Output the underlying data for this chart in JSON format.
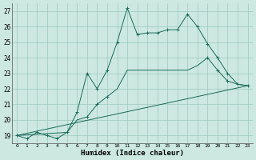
{
  "xlabel": "Humidex (Indice chaleur)",
  "background_color": "#cce8e0",
  "grid_color": "#9ec8c0",
  "line_color": "#1a6b5a",
  "xlim": [
    -0.5,
    23.5
  ],
  "ylim": [
    18.5,
    27.5
  ],
  "yticks": [
    19,
    20,
    21,
    22,
    23,
    24,
    25,
    26,
    27
  ],
  "xticks": [
    0,
    1,
    2,
    3,
    4,
    5,
    6,
    7,
    8,
    9,
    10,
    11,
    12,
    13,
    14,
    15,
    16,
    17,
    18,
    19,
    20,
    21,
    22,
    23
  ],
  "line1_x": [
    0,
    1,
    2,
    3,
    4,
    5,
    6,
    7,
    8,
    9,
    10,
    11,
    12,
    13,
    14,
    15,
    16,
    17,
    18,
    19,
    20,
    21,
    22,
    23
  ],
  "line1_y": [
    19.0,
    18.8,
    19.2,
    19.0,
    18.8,
    19.2,
    20.5,
    23.0,
    22.0,
    23.2,
    25.0,
    27.2,
    25.5,
    25.6,
    25.6,
    25.8,
    25.8,
    26.8,
    26.0,
    24.9,
    24.0,
    23.0,
    22.3,
    22.2
  ],
  "line2_x": [
    0,
    5,
    6,
    7,
    8,
    9,
    10,
    11,
    12,
    13,
    14,
    15,
    16,
    17,
    18,
    19,
    20,
    21,
    22,
    23
  ],
  "line2_y": [
    19.0,
    19.2,
    20.0,
    20.2,
    21.0,
    21.5,
    22.0,
    23.2,
    23.2,
    23.2,
    23.2,
    23.2,
    23.2,
    23.2,
    23.5,
    24.0,
    23.2,
    22.5,
    22.3,
    22.2
  ],
  "line3_x": [
    0,
    23
  ],
  "line3_y": [
    19.0,
    22.2
  ],
  "marker1_x": [
    0,
    1,
    2,
    3,
    4,
    5,
    6,
    7,
    8,
    9,
    10,
    11,
    12,
    13,
    14,
    15,
    16,
    17,
    18,
    19,
    20,
    21,
    22,
    23
  ],
  "marker1_y": [
    19.0,
    18.8,
    19.2,
    19.0,
    18.8,
    19.2,
    20.5,
    23.0,
    22.0,
    23.2,
    25.0,
    27.2,
    25.5,
    25.6,
    25.6,
    25.8,
    25.8,
    26.8,
    26.0,
    24.9,
    24.0,
    23.0,
    22.3,
    22.2
  ],
  "marker2_x": [
    7,
    8,
    9,
    19,
    20,
    21
  ],
  "marker2_y": [
    20.2,
    21.0,
    21.5,
    24.0,
    23.2,
    22.5
  ]
}
